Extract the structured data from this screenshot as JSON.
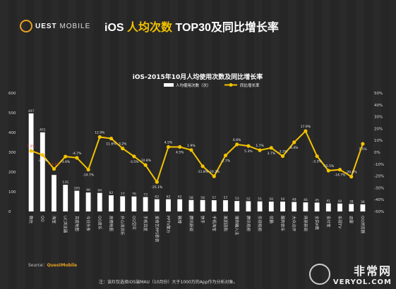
{
  "header": {
    "logo_text": "UEST",
    "logo_sub": "MOBILE",
    "title_part1": "iOS ",
    "title_highlight": "人均次数",
    "title_part2": " TOP30及同比增长率"
  },
  "source": {
    "prefix": "Source：",
    "brand": "QuestMobile"
  },
  "note": "注：该灶仅选择iOS端MAU（10月份）大于1000万的App作为分析对象。",
  "watermark": {
    "cn": "非常网",
    "en": "VERYOL.COM"
  },
  "colors": {
    "bar": "#ffffff",
    "line": "#f2c200",
    "background": "#2a2a2a",
    "highlight": "#f2c200",
    "red_label": "#d23030"
  },
  "chart_data": {
    "type": "bar+line",
    "title": "iOS-2015年10月人均使用次数及同比增长率",
    "legend": {
      "position": "top-right",
      "items": [
        "人均使用次数（次）",
        "同比增长率"
      ]
    },
    "categories": [
      "微信",
      "QQ",
      "淘宝",
      "UC浏览器",
      "百度地图",
      "今日头条",
      "QQ音乐",
      "高德地图",
      "开心消消乐",
      "QQ空间",
      "手机百度",
      "爱奇艺PPS影音",
      "PPTV聚力",
      "微博",
      "腾讯新闻",
      "快手",
      "手机淘宝",
      "美团团购",
      "搜狗输入法",
      "腾讯视频",
      "乐视视频",
      "优酷",
      "酷狗音乐",
      "大众点评",
      "网易新闻",
      "全民K歌",
      "支付宝",
      "乐视TV",
      "迅雷",
      "QQ浏览器"
    ],
    "bar_labels": [
      "497",
      "401",
      "",
      "135",
      "105",
      "96",
      "94",
      "82",
      "77",
      "76",
      "73",
      "62",
      "62",
      "62",
      "58",
      "58",
      "57",
      "57",
      "53",
      "52",
      "51",
      "50",
      "50",
      "48",
      "46",
      "45",
      "41",
      "40",
      "38",
      "36"
    ],
    "series": [
      {
        "name": "人均使用次数（次）",
        "axis": "left",
        "values": [
          497,
          401,
          185,
          135,
          105,
          96,
          94,
          82,
          77,
          76,
          73,
          62,
          62,
          62,
          58,
          58,
          57,
          57,
          53,
          52,
          51,
          50,
          50,
          48,
          46,
          45,
          41,
          40,
          38,
          36
        ]
      },
      {
        "name": "同比增长率",
        "axis": "right",
        "values": [
          1.2,
          -2.3,
          -14.1,
          -3.6,
          -4.7,
          -14.7,
          12.9,
          11.6,
          3.2,
          -3.5,
          -10.8,
          -25.1,
          4.5,
          4.5,
          1.9,
          -11.8,
          -20.3,
          -2.7,
          6.6,
          5.3,
          1.7,
          3.7,
          -3.3,
          8.4,
          17.9,
          -3.3,
          -15.5,
          -14.7,
          -20.6,
          7.1
        ],
        "labels": [
          "1.2%",
          "-2.3%",
          "-14.1%",
          "-3.6%",
          "-4.7%",
          "-14.7%",
          "12.9%",
          "11.6%",
          "3.2%",
          "-3.5%",
          "-10.8%",
          "-25.1%",
          "4.5%",
          "4.5%",
          "1.9%",
          "-11.8%",
          "-20.3%",
          "-2.7%",
          "6.6%",
          "5.3%",
          "1.7%",
          "3.7%",
          "-3.3%",
          "8.4%",
          "17.9%",
          "-3.3%",
          "-15.5%",
          "-14.7%",
          "-20.6%",
          "7.1%"
        ]
      }
    ],
    "left_axis": {
      "min": 0,
      "max": 600,
      "ticks": [
        "0",
        "100",
        "200",
        "300",
        "400",
        "500",
        "600"
      ]
    },
    "right_axis": {
      "min": -50,
      "max": 50,
      "ticks": [
        "-50%",
        "-40%",
        "-30%",
        "-20%",
        "-10%",
        "0%",
        "10%",
        "20%",
        "30%",
        "40%",
        "50%"
      ]
    },
    "grid": false
  }
}
